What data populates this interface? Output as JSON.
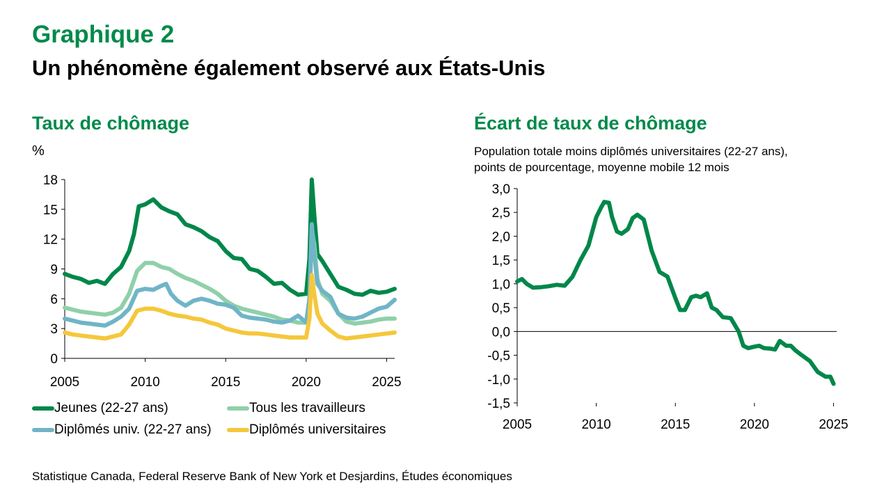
{
  "header": {
    "kicker": "Graphique 2",
    "title": "Un phénomène également observé aux États-Unis"
  },
  "left_panel": {
    "title": "Taux de chômage",
    "unit": "%"
  },
  "right_panel": {
    "title": "Écart de taux de chômage",
    "subtitle_line1": "Population totale moins diplômés universitaires (22-27 ans),",
    "subtitle_line2": "points de pourcentage, moyenne mobile 12 mois"
  },
  "legend": [
    {
      "label": "Jeunes (22-27 ans)",
      "color": "#00874a"
    },
    {
      "label": "Tous les travailleurs",
      "color": "#8fd0a9"
    },
    {
      "label": "Diplômés univ. (22-27 ans)",
      "color": "#6fb5c7"
    },
    {
      "label": "Diplômés universitaires",
      "color": "#f5c73b"
    }
  ],
  "source": "Statistique Canada, Federal Reserve Bank of New York et Desjardins, Études économiques",
  "chart_data": [
    {
      "type": "line",
      "title": "Taux de chômage",
      "ylabel": "%",
      "xlim": [
        2005,
        2025.5
      ],
      "ylim": [
        0,
        18
      ],
      "xticks": [
        "2005",
        "2010",
        "2015",
        "2020",
        "2025"
      ],
      "yticks": [
        "0",
        "3",
        "6",
        "9",
        "12",
        "15",
        "18"
      ],
      "legend": "bottom",
      "grid": false,
      "series": [
        {
          "name": "Jeunes (22-27 ans)",
          "color": "#00874a",
          "x": [
            2005.0,
            2005.5,
            2006.0,
            2006.5,
            2007.0,
            2007.5,
            2008.0,
            2008.5,
            2009.0,
            2009.3,
            2009.6,
            2010.0,
            2010.5,
            2011.0,
            2011.5,
            2012.0,
            2012.5,
            2013.0,
            2013.5,
            2014.0,
            2014.5,
            2015.0,
            2015.5,
            2016.0,
            2016.5,
            2017.0,
            2017.5,
            2018.0,
            2018.5,
            2019.0,
            2019.5,
            2020.0,
            2020.2,
            2020.35,
            2020.5,
            2020.7,
            2021.0,
            2021.5,
            2022.0,
            2022.5,
            2023.0,
            2023.5,
            2024.0,
            2024.5,
            2025.0,
            2025.5
          ],
          "y": [
            8.5,
            8.2,
            8.0,
            7.6,
            7.8,
            7.5,
            8.5,
            9.2,
            10.8,
            12.5,
            15.3,
            15.5,
            16.0,
            15.2,
            14.8,
            14.5,
            13.5,
            13.2,
            12.8,
            12.2,
            11.8,
            10.8,
            10.1,
            10.0,
            9.0,
            8.8,
            8.2,
            7.5,
            7.6,
            6.9,
            6.4,
            6.5,
            10.0,
            18.0,
            14.5,
            10.5,
            9.8,
            8.5,
            7.2,
            6.9,
            6.5,
            6.4,
            6.8,
            6.6,
            6.7,
            7.0
          ]
        },
        {
          "name": "Tous les travailleurs",
          "color": "#8fd0a9",
          "x": [
            2005.0,
            2005.5,
            2006.0,
            2006.5,
            2007.0,
            2007.5,
            2008.0,
            2008.5,
            2009.0,
            2009.5,
            2010.0,
            2010.5,
            2011.0,
            2011.5,
            2012.0,
            2012.5,
            2013.0,
            2013.5,
            2014.0,
            2014.5,
            2015.0,
            2015.5,
            2016.0,
            2016.5,
            2017.0,
            2017.5,
            2018.0,
            2018.5,
            2019.0,
            2019.5,
            2020.0,
            2020.2,
            2020.35,
            2020.5,
            2020.7,
            2021.0,
            2021.5,
            2022.0,
            2022.5,
            2023.0,
            2023.5,
            2024.0,
            2024.5,
            2025.0,
            2025.5
          ],
          "y": [
            5.1,
            4.9,
            4.7,
            4.6,
            4.5,
            4.4,
            4.6,
            5.1,
            6.5,
            8.8,
            9.6,
            9.6,
            9.2,
            9.0,
            8.5,
            8.1,
            7.8,
            7.4,
            7.0,
            6.5,
            5.8,
            5.3,
            5.0,
            4.8,
            4.6,
            4.4,
            4.2,
            3.9,
            3.8,
            3.6,
            3.6,
            4.5,
            13.0,
            11.5,
            8.0,
            6.5,
            5.8,
            4.5,
            3.7,
            3.5,
            3.6,
            3.7,
            3.9,
            4.0,
            4.0
          ]
        },
        {
          "name": "Diplômés univ. (22-27 ans)",
          "color": "#6fb5c7",
          "x": [
            2005.0,
            2005.5,
            2006.0,
            2006.5,
            2007.0,
            2007.5,
            2008.0,
            2008.5,
            2009.0,
            2009.5,
            2010.0,
            2010.5,
            2011.0,
            2011.3,
            2011.6,
            2012.0,
            2012.5,
            2013.0,
            2013.5,
            2014.0,
            2014.5,
            2015.0,
            2015.5,
            2016.0,
            2016.5,
            2017.0,
            2017.5,
            2018.0,
            2018.5,
            2019.0,
            2019.5,
            2020.0,
            2020.2,
            2020.35,
            2020.5,
            2020.7,
            2021.0,
            2021.5,
            2022.0,
            2022.5,
            2023.0,
            2023.5,
            2024.0,
            2024.5,
            2025.0,
            2025.5
          ],
          "y": [
            4.0,
            3.8,
            3.6,
            3.5,
            3.4,
            3.3,
            3.7,
            4.2,
            5.0,
            6.8,
            7.0,
            6.9,
            7.3,
            7.5,
            6.5,
            5.8,
            5.3,
            5.8,
            6.0,
            5.8,
            5.5,
            5.4,
            5.1,
            4.3,
            4.1,
            4.0,
            3.9,
            3.7,
            3.6,
            3.8,
            4.3,
            3.6,
            6.0,
            13.5,
            10.5,
            7.5,
            6.8,
            6.2,
            4.5,
            4.1,
            4.0,
            4.2,
            4.6,
            5.0,
            5.2,
            5.9
          ]
        },
        {
          "name": "Diplômés universitaires",
          "color": "#f5c73b",
          "x": [
            2005.0,
            2005.5,
            2006.0,
            2006.5,
            2007.0,
            2007.5,
            2008.0,
            2008.5,
            2009.0,
            2009.5,
            2010.0,
            2010.5,
            2011.0,
            2011.5,
            2012.0,
            2012.5,
            2013.0,
            2013.5,
            2014.0,
            2014.5,
            2015.0,
            2015.5,
            2016.0,
            2016.5,
            2017.0,
            2017.5,
            2018.0,
            2018.5,
            2019.0,
            2019.5,
            2020.0,
            2020.2,
            2020.35,
            2020.5,
            2020.7,
            2021.0,
            2021.5,
            2022.0,
            2022.5,
            2023.0,
            2023.5,
            2024.0,
            2024.5,
            2025.0,
            2025.5
          ],
          "y": [
            2.6,
            2.4,
            2.3,
            2.2,
            2.1,
            2.0,
            2.2,
            2.4,
            3.4,
            4.8,
            5.0,
            5.0,
            4.8,
            4.5,
            4.3,
            4.2,
            4.0,
            3.9,
            3.6,
            3.4,
            3.0,
            2.8,
            2.6,
            2.5,
            2.5,
            2.4,
            2.3,
            2.2,
            2.1,
            2.1,
            2.1,
            4.0,
            8.4,
            6.5,
            4.5,
            3.5,
            2.8,
            2.2,
            2.0,
            2.1,
            2.2,
            2.3,
            2.4,
            2.5,
            2.6
          ]
        }
      ]
    },
    {
      "type": "line",
      "title": "Écart de taux de chômage",
      "subtitle": "Population totale moins diplômés universitaires (22-27 ans), points de pourcentage, moyenne mobile 12 mois",
      "xlim": [
        2005,
        2025.2
      ],
      "ylim": [
        -1.5,
        3.0
      ],
      "xticks": [
        "2005",
        "2010",
        "2015",
        "2020",
        "2025"
      ],
      "yticks": [
        "-1,5",
        "-1,0",
        "-0,5",
        "0,0",
        "0,5",
        "1,0",
        "1,5",
        "2,0",
        "2,5",
        "3,0"
      ],
      "grid": false,
      "series": [
        {
          "color": "#00874a",
          "x": [
            2005.0,
            2005.3,
            2005.6,
            2006.0,
            2006.5,
            2007.0,
            2007.5,
            2008.0,
            2008.5,
            2009.0,
            2009.5,
            2010.0,
            2010.3,
            2010.5,
            2010.8,
            2011.0,
            2011.3,
            2011.6,
            2012.0,
            2012.3,
            2012.6,
            2013.0,
            2013.5,
            2014.0,
            2014.5,
            2015.0,
            2015.3,
            2015.6,
            2016.0,
            2016.3,
            2016.6,
            2017.0,
            2017.3,
            2017.6,
            2018.0,
            2018.5,
            2019.0,
            2019.3,
            2019.6,
            2020.0,
            2020.3,
            2020.6,
            2021.0,
            2021.3,
            2021.6,
            2022.0,
            2022.3,
            2022.6,
            2023.0,
            2023.5,
            2024.0,
            2024.5,
            2024.8,
            2025.0
          ],
          "y": [
            1.05,
            1.1,
            1.0,
            0.92,
            0.93,
            0.95,
            0.98,
            0.96,
            1.15,
            1.5,
            1.8,
            2.4,
            2.6,
            2.72,
            2.7,
            2.4,
            2.1,
            2.05,
            2.15,
            2.38,
            2.45,
            2.35,
            1.7,
            1.25,
            1.15,
            0.7,
            0.45,
            0.45,
            0.72,
            0.75,
            0.72,
            0.8,
            0.5,
            0.45,
            0.3,
            0.28,
            0.0,
            -0.3,
            -0.35,
            -0.32,
            -0.3,
            -0.35,
            -0.36,
            -0.38,
            -0.2,
            -0.3,
            -0.3,
            -0.4,
            -0.5,
            -0.62,
            -0.85,
            -0.95,
            -0.95,
            -1.1
          ]
        }
      ]
    }
  ]
}
